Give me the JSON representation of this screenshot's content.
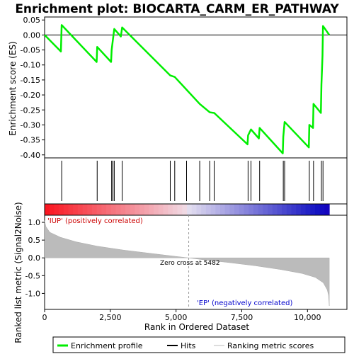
{
  "chart_data": {
    "type": "line",
    "title": "Enrichment plot: BIOCARTA_CARM_ER_PATHWAY",
    "top_panel": {
      "ylabel": "Enrichment score (ES)",
      "ylim": [
        -0.41,
        0.06
      ],
      "yticks": [
        "0.05",
        "0.00",
        "-0.05",
        "-0.10",
        "-0.15",
        "-0.20",
        "-0.25",
        "-0.30",
        "-0.35",
        "-0.40"
      ],
      "series_color": "#00ee00",
      "profile": [
        [
          0,
          0.0
        ],
        [
          620,
          -0.055
        ],
        [
          650,
          0.033
        ],
        [
          1980,
          -0.09
        ],
        [
          2000,
          -0.04
        ],
        [
          2530,
          -0.09
        ],
        [
          2550,
          -0.05
        ],
        [
          2600,
          -0.015
        ],
        [
          2650,
          0.02
        ],
        [
          2900,
          -0.005
        ],
        [
          2950,
          0.025
        ],
        [
          4780,
          -0.135
        ],
        [
          4950,
          -0.14
        ],
        [
          5900,
          -0.23
        ],
        [
          6280,
          -0.258
        ],
        [
          6450,
          -0.26
        ],
        [
          7720,
          -0.365
        ],
        [
          7740,
          -0.335
        ],
        [
          7850,
          -0.315
        ],
        [
          8150,
          -0.345
        ],
        [
          8180,
          -0.31
        ],
        [
          9060,
          -0.395
        ],
        [
          9080,
          -0.34
        ],
        [
          9130,
          -0.29
        ],
        [
          10050,
          -0.375
        ],
        [
          10070,
          -0.3
        ],
        [
          10210,
          -0.31
        ],
        [
          10230,
          -0.23
        ],
        [
          10510,
          -0.26
        ],
        [
          10530,
          -0.165
        ],
        [
          10570,
          -0.07
        ],
        [
          10590,
          0.03
        ],
        [
          10830,
          0.0
        ]
      ]
    },
    "hits": [
      650,
      2000,
      2550,
      2600,
      2650,
      2950,
      4780,
      4950,
      5400,
      5900,
      6280,
      6450,
      7740,
      7850,
      8180,
      9080,
      9130,
      10070,
      10230,
      10530,
      10590
    ],
    "bottom_panel": {
      "ylabel": "Ranked list metric (Signal2Noise)",
      "ylim": [
        -1.45,
        1.2
      ],
      "yticks": [
        "1.0",
        "0.5",
        "0.0",
        "-0.5",
        "-1.0"
      ],
      "metric_curve": [
        [
          0,
          1.05
        ],
        [
          50,
          0.88
        ],
        [
          200,
          0.72
        ],
        [
          600,
          0.58
        ],
        [
          1200,
          0.45
        ],
        [
          2000,
          0.33
        ],
        [
          3000,
          0.22
        ],
        [
          4000,
          0.13
        ],
        [
          5000,
          0.04
        ],
        [
          5482,
          0.0
        ],
        [
          6000,
          -0.05
        ],
        [
          7000,
          -0.13
        ],
        [
          8000,
          -0.22
        ],
        [
          9000,
          -0.33
        ],
        [
          9800,
          -0.44
        ],
        [
          10300,
          -0.55
        ],
        [
          10600,
          -0.7
        ],
        [
          10750,
          -0.9
        ],
        [
          10800,
          -1.05
        ],
        [
          10830,
          -1.35
        ]
      ],
      "pos_label": "'IUP' (positively correlated)",
      "neg_label": "'EP' (negatively correlated)",
      "zero_cross_label": "Zero cross at 5482",
      "zero_cross": 5482
    },
    "xlabel": "Rank in Ordered Dataset",
    "xlim": [
      0,
      11500
    ],
    "xticks": [
      "0",
      "2,500",
      "5,000",
      "7,500",
      "10,000"
    ],
    "n_genes": 10830
  },
  "legend": {
    "items": [
      {
        "label": "Enrichment profile",
        "color": "#00ee00"
      },
      {
        "label": "Hits",
        "color": "#000000"
      },
      {
        "label": "Ranking metric scores",
        "color": "#bbbbbb"
      }
    ]
  }
}
